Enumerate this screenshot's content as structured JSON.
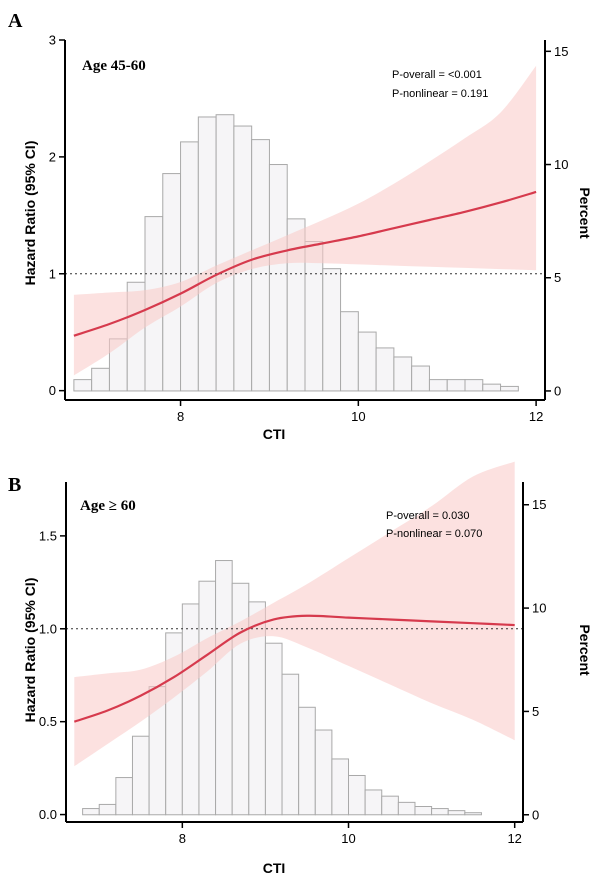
{
  "chart_data": [
    {
      "type": "line",
      "panel": "A",
      "subtitle": "Age 45-60",
      "annotations": [
        "P-overall = <0.001",
        "P-nonlinear = 0.191"
      ],
      "xlabel": "CTI",
      "ylabel": "Hazard Ratio (95% CI)",
      "y2label": "Percent",
      "xlim": [
        6.7,
        12.1
      ],
      "ylim": [
        -0.08,
        3.0
      ],
      "y2lim": [
        -0.4,
        15.5
      ],
      "xticks": [
        "8",
        "10",
        "12"
      ],
      "yticks": [
        "0",
        "1",
        "2",
        "3"
      ],
      "y2ticks": [
        "0",
        "5",
        "10",
        "15"
      ],
      "reference_line": 1.0,
      "series": [
        {
          "kind": "spline",
          "x": [
            6.8,
            7.2,
            7.6,
            8.0,
            8.4,
            8.8,
            9.2,
            9.6,
            10.0,
            10.4,
            10.8,
            11.2,
            11.6,
            12.0
          ],
          "y": [
            0.47,
            0.57,
            0.69,
            0.83,
            0.99,
            1.12,
            1.2,
            1.26,
            1.32,
            1.39,
            1.46,
            1.53,
            1.61,
            1.7
          ],
          "lower": [
            0.13,
            0.32,
            0.54,
            0.72,
            0.92,
            1.04,
            1.09,
            1.09,
            1.08,
            1.07,
            1.06,
            1.05,
            1.04,
            1.03
          ],
          "upper": [
            0.82,
            0.84,
            0.86,
            0.93,
            1.07,
            1.2,
            1.33,
            1.46,
            1.6,
            1.77,
            1.96,
            2.16,
            2.38,
            2.78
          ]
        },
        {
          "kind": "histogram",
          "bin_width": 0.2,
          "bin_starts": [
            6.8,
            7.0,
            7.2,
            7.4,
            7.6,
            7.8,
            8.0,
            8.2,
            8.4,
            8.6,
            8.8,
            9.0,
            9.2,
            9.4,
            9.6,
            9.8,
            10.0,
            10.2,
            10.4,
            10.6,
            10.8,
            11.0,
            11.2,
            11.4,
            11.6
          ],
          "percent": [
            0.5,
            1.0,
            2.3,
            4.8,
            7.7,
            9.6,
            11.0,
            12.1,
            12.2,
            11.7,
            11.1,
            10.0,
            7.6,
            6.6,
            5.4,
            3.5,
            2.6,
            1.9,
            1.5,
            1.1,
            0.5,
            0.5,
            0.5,
            0.3,
            0.2
          ]
        }
      ]
    },
    {
      "type": "line",
      "panel": "B",
      "subtitle": "Age ≥ 60",
      "annotations": [
        "P-overall = 0.030",
        "P-nonlinear = 0.070"
      ],
      "xlabel": "CTI",
      "ylabel": "Hazard Ratio (95% CI)",
      "y2label": "Percent",
      "xlim": [
        6.6,
        12.1
      ],
      "ylim": [
        -0.04,
        1.79
      ],
      "y2lim": [
        -0.35,
        16.1
      ],
      "xticks": [
        "8",
        "10",
        "12"
      ],
      "yticks": [
        "0.0",
        "0.5",
        "1.0",
        "1.5"
      ],
      "y2ticks": [
        "0",
        "5",
        "10",
        "15"
      ],
      "reference_line": 1.0,
      "series": [
        {
          "kind": "spline",
          "x": [
            6.7,
            7.1,
            7.5,
            7.9,
            8.3,
            8.7,
            9.1,
            9.5,
            10.0,
            10.5,
            11.0,
            11.5,
            12.0
          ],
          "y": [
            0.5,
            0.56,
            0.64,
            0.74,
            0.86,
            0.98,
            1.05,
            1.07,
            1.06,
            1.05,
            1.04,
            1.03,
            1.02
          ],
          "lower": [
            0.26,
            0.38,
            0.5,
            0.63,
            0.77,
            0.92,
            0.96,
            0.9,
            0.8,
            0.7,
            0.6,
            0.51,
            0.4
          ],
          "upper": [
            0.74,
            0.76,
            0.78,
            0.85,
            0.95,
            1.04,
            1.14,
            1.24,
            1.38,
            1.52,
            1.66,
            1.82,
            1.9
          ]
        },
        {
          "kind": "histogram",
          "bin_width": 0.2,
          "bin_starts": [
            6.8,
            7.0,
            7.2,
            7.4,
            7.6,
            7.8,
            8.0,
            8.2,
            8.4,
            8.6,
            8.8,
            9.0,
            9.2,
            9.4,
            9.6,
            9.8,
            10.0,
            10.2,
            10.4,
            10.6,
            10.8,
            11.0,
            11.2,
            11.4,
            11.6
          ],
          "percent": [
            0.3,
            0.5,
            1.8,
            3.8,
            6.2,
            8.8,
            10.2,
            11.3,
            12.3,
            11.2,
            10.3,
            8.3,
            6.8,
            5.2,
            4.1,
            2.7,
            1.9,
            1.2,
            0.9,
            0.6,
            0.4,
            0.3,
            0.2,
            0.1,
            0.0
          ]
        }
      ]
    }
  ]
}
